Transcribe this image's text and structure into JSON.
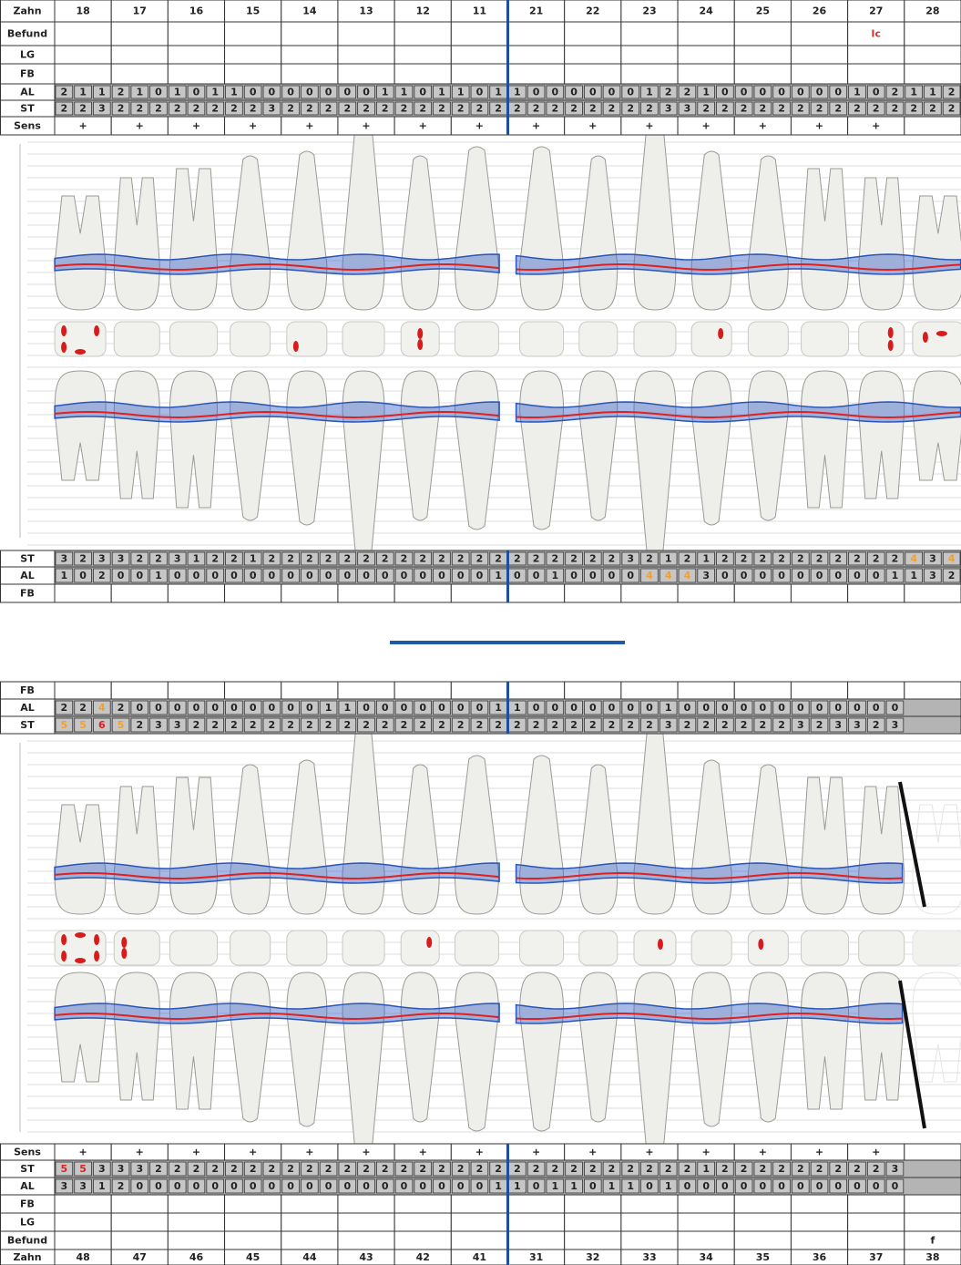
{
  "sections": [
    {
      "rows": [
        {
          "label": "Zahn",
          "teeth": [
            "18",
            "17",
            "16",
            "15",
            "14",
            "13",
            "12",
            "11",
            "21",
            "22",
            "23",
            "24",
            "25",
            "26",
            "27",
            "28"
          ]
        },
        {
          "label": "Befund",
          "teeth": [
            null,
            null,
            null,
            null,
            null,
            null,
            null,
            null,
            null,
            null,
            null,
            null,
            null,
            null,
            "Ic",
            null
          ],
          "color": "#d9342b"
        },
        {
          "label": "LG"
        },
        {
          "label": "FB"
        },
        {
          "label": "AL",
          "sites": [
            2,
            1,
            1,
            2,
            1,
            0,
            1,
            0,
            1,
            1,
            0,
            0,
            0,
            0,
            0,
            0,
            0,
            1,
            1,
            0,
            1,
            1,
            0,
            1,
            1,
            0,
            0,
            0,
            0,
            0,
            0,
            1,
            2,
            2,
            1,
            0,
            0,
            0,
            0,
            0,
            0,
            0,
            1,
            0,
            2,
            1,
            1,
            2
          ]
        },
        {
          "label": "ST",
          "sites": [
            2,
            2,
            3,
            2,
            2,
            2,
            2,
            2,
            2,
            2,
            2,
            3,
            2,
            2,
            2,
            2,
            2,
            2,
            2,
            2,
            2,
            2,
            2,
            2,
            2,
            2,
            2,
            2,
            2,
            2,
            2,
            2,
            3,
            3,
            2,
            2,
            2,
            2,
            2,
            2,
            2,
            2,
            2,
            2,
            2,
            2,
            2,
            2
          ]
        },
        {
          "label": "Sens",
          "teeth": [
            "+",
            "+",
            "+",
            "+",
            "+",
            "+",
            "+",
            "+",
            "+",
            "+",
            "+",
            "+",
            "+",
            "+",
            "+",
            null
          ]
        }
      ]
    },
    {
      "rows": [
        {
          "label": "ST",
          "sites": [
            3,
            2,
            3,
            3,
            2,
            2,
            3,
            1,
            2,
            2,
            1,
            2,
            2,
            2,
            2,
            2,
            2,
            2,
            2,
            2,
            2,
            2,
            2,
            2,
            2,
            2,
            2,
            2,
            2,
            2,
            3,
            2,
            1,
            2,
            1,
            2,
            2,
            2,
            2,
            2,
            2,
            2,
            2,
            2,
            2,
            4,
            3,
            4
          ],
          "colors": [
            null,
            null,
            null,
            null,
            null,
            null,
            null,
            null,
            null,
            null,
            null,
            null,
            null,
            null,
            null,
            null,
            null,
            null,
            null,
            null,
            null,
            null,
            null,
            null,
            null,
            null,
            null,
            null,
            null,
            null,
            null,
            null,
            null,
            null,
            null,
            null,
            null,
            null,
            null,
            null,
            null,
            null,
            null,
            null,
            null,
            "#f0a030",
            null,
            "#f0a030"
          ]
        },
        {
          "label": "AL",
          "sites": [
            1,
            0,
            2,
            0,
            0,
            1,
            0,
            0,
            0,
            0,
            0,
            0,
            0,
            0,
            0,
            0,
            0,
            0,
            0,
            0,
            0,
            0,
            0,
            1,
            0,
            0,
            1,
            0,
            0,
            0,
            0,
            4,
            4,
            4,
            3,
            0,
            0,
            0,
            0,
            0,
            0,
            0,
            0,
            0,
            1,
            1,
            3,
            2
          ],
          "colors": [
            null,
            null,
            null,
            null,
            null,
            null,
            null,
            null,
            null,
            null,
            null,
            null,
            null,
            null,
            null,
            null,
            null,
            null,
            null,
            null,
            null,
            null,
            null,
            null,
            null,
            null,
            null,
            null,
            null,
            null,
            null,
            "#f0a030",
            "#f0a030",
            "#f0a030",
            null,
            null,
            null,
            null,
            null,
            null,
            null,
            null,
            null,
            null,
            null,
            null,
            null,
            null
          ]
        },
        {
          "label": "FB"
        }
      ]
    },
    {
      "rows": [
        {
          "label": "FB"
        },
        {
          "label": "AL",
          "sites": [
            2,
            2,
            4,
            2,
            0,
            0,
            0,
            0,
            0,
            0,
            0,
            0,
            0,
            0,
            1,
            1,
            0,
            0,
            0,
            0,
            0,
            0,
            0,
            1,
            1,
            0,
            0,
            0,
            0,
            0,
            0,
            0,
            1,
            0,
            0,
            0,
            0,
            0,
            0,
            0,
            0,
            0,
            0,
            0,
            0,
            null,
            null,
            null
          ],
          "colors": [
            null,
            null,
            "#f0a030",
            null,
            null,
            null,
            null,
            null,
            null,
            null,
            null,
            null,
            null,
            null,
            null,
            null,
            null,
            null,
            null,
            null,
            null,
            null,
            null,
            null,
            null,
            null,
            null,
            null,
            null,
            null,
            null,
            null,
            null,
            null,
            null,
            null,
            null,
            null,
            null,
            null,
            null,
            null,
            null,
            null,
            null,
            null,
            null,
            null
          ]
        },
        {
          "label": "ST",
          "sites": [
            5,
            5,
            6,
            5,
            2,
            3,
            3,
            2,
            2,
            2,
            2,
            2,
            2,
            2,
            2,
            2,
            2,
            2,
            2,
            2,
            2,
            2,
            2,
            2,
            2,
            2,
            2,
            2,
            2,
            2,
            2,
            2,
            3,
            2,
            2,
            2,
            2,
            2,
            2,
            3,
            2,
            3,
            3,
            2,
            3,
            null,
            null,
            null
          ],
          "colors": [
            "#f0a030",
            "#f0a030",
            "#e02020",
            "#f0a030",
            null,
            null,
            null,
            null,
            null,
            null,
            null,
            null,
            null,
            null,
            null,
            null,
            null,
            null,
            null,
            null,
            null,
            null,
            null,
            null,
            null,
            null,
            null,
            null,
            null,
            null,
            null,
            null,
            null,
            null,
            null,
            null,
            null,
            null,
            null,
            null,
            null,
            null,
            null,
            null,
            null,
            null,
            null,
            null
          ]
        }
      ]
    },
    {
      "rows": [
        {
          "label": "Sens",
          "teeth": [
            "+",
            "+",
            "+",
            "+",
            "+",
            "+",
            "+",
            "+",
            "+",
            "+",
            "+",
            "+",
            "+",
            "+",
            "+",
            null
          ]
        },
        {
          "label": "ST",
          "sites": [
            5,
            5,
            3,
            3,
            3,
            2,
            2,
            2,
            2,
            2,
            2,
            2,
            2,
            2,
            2,
            2,
            2,
            2,
            2,
            2,
            2,
            2,
            2,
            2,
            2,
            2,
            2,
            2,
            2,
            2,
            2,
            2,
            2,
            2,
            1,
            2,
            2,
            2,
            2,
            2,
            2,
            2,
            2,
            2,
            3,
            null,
            null,
            null
          ],
          "colors": [
            "#e02020",
            "#e02020",
            null,
            null,
            null,
            null,
            null,
            null,
            null,
            null,
            null,
            null,
            null,
            null,
            null,
            null,
            null,
            null,
            null,
            null,
            null,
            null,
            null,
            null,
            null,
            null,
            null,
            null,
            null,
            null,
            null,
            null,
            null,
            null,
            null,
            null,
            null,
            null,
            null,
            null,
            null,
            null,
            null,
            null,
            null,
            null,
            null,
            null
          ]
        },
        {
          "label": "AL",
          "sites": [
            3,
            3,
            1,
            2,
            0,
            0,
            0,
            0,
            0,
            0,
            0,
            0,
            0,
            0,
            0,
            0,
            0,
            0,
            0,
            0,
            0,
            0,
            0,
            1,
            1,
            0,
            1,
            1,
            0,
            1,
            1,
            0,
            1,
            0,
            0,
            0,
            0,
            0,
            0,
            0,
            0,
            0,
            0,
            0,
            0,
            null,
            null,
            null
          ]
        },
        {
          "label": "FB"
        },
        {
          "label": "LG"
        },
        {
          "label": "Befund",
          "teeth": [
            null,
            null,
            null,
            null,
            null,
            null,
            null,
            null,
            null,
            null,
            null,
            null,
            null,
            null,
            null,
            "f"
          ]
        },
        {
          "label": "Zahn",
          "teeth": [
            "48",
            "47",
            "46",
            "45",
            "44",
            "43",
            "42",
            "41",
            "31",
            "32",
            "33",
            "34",
            "35",
            "36",
            "37",
            "38"
          ]
        }
      ]
    }
  ]
}
